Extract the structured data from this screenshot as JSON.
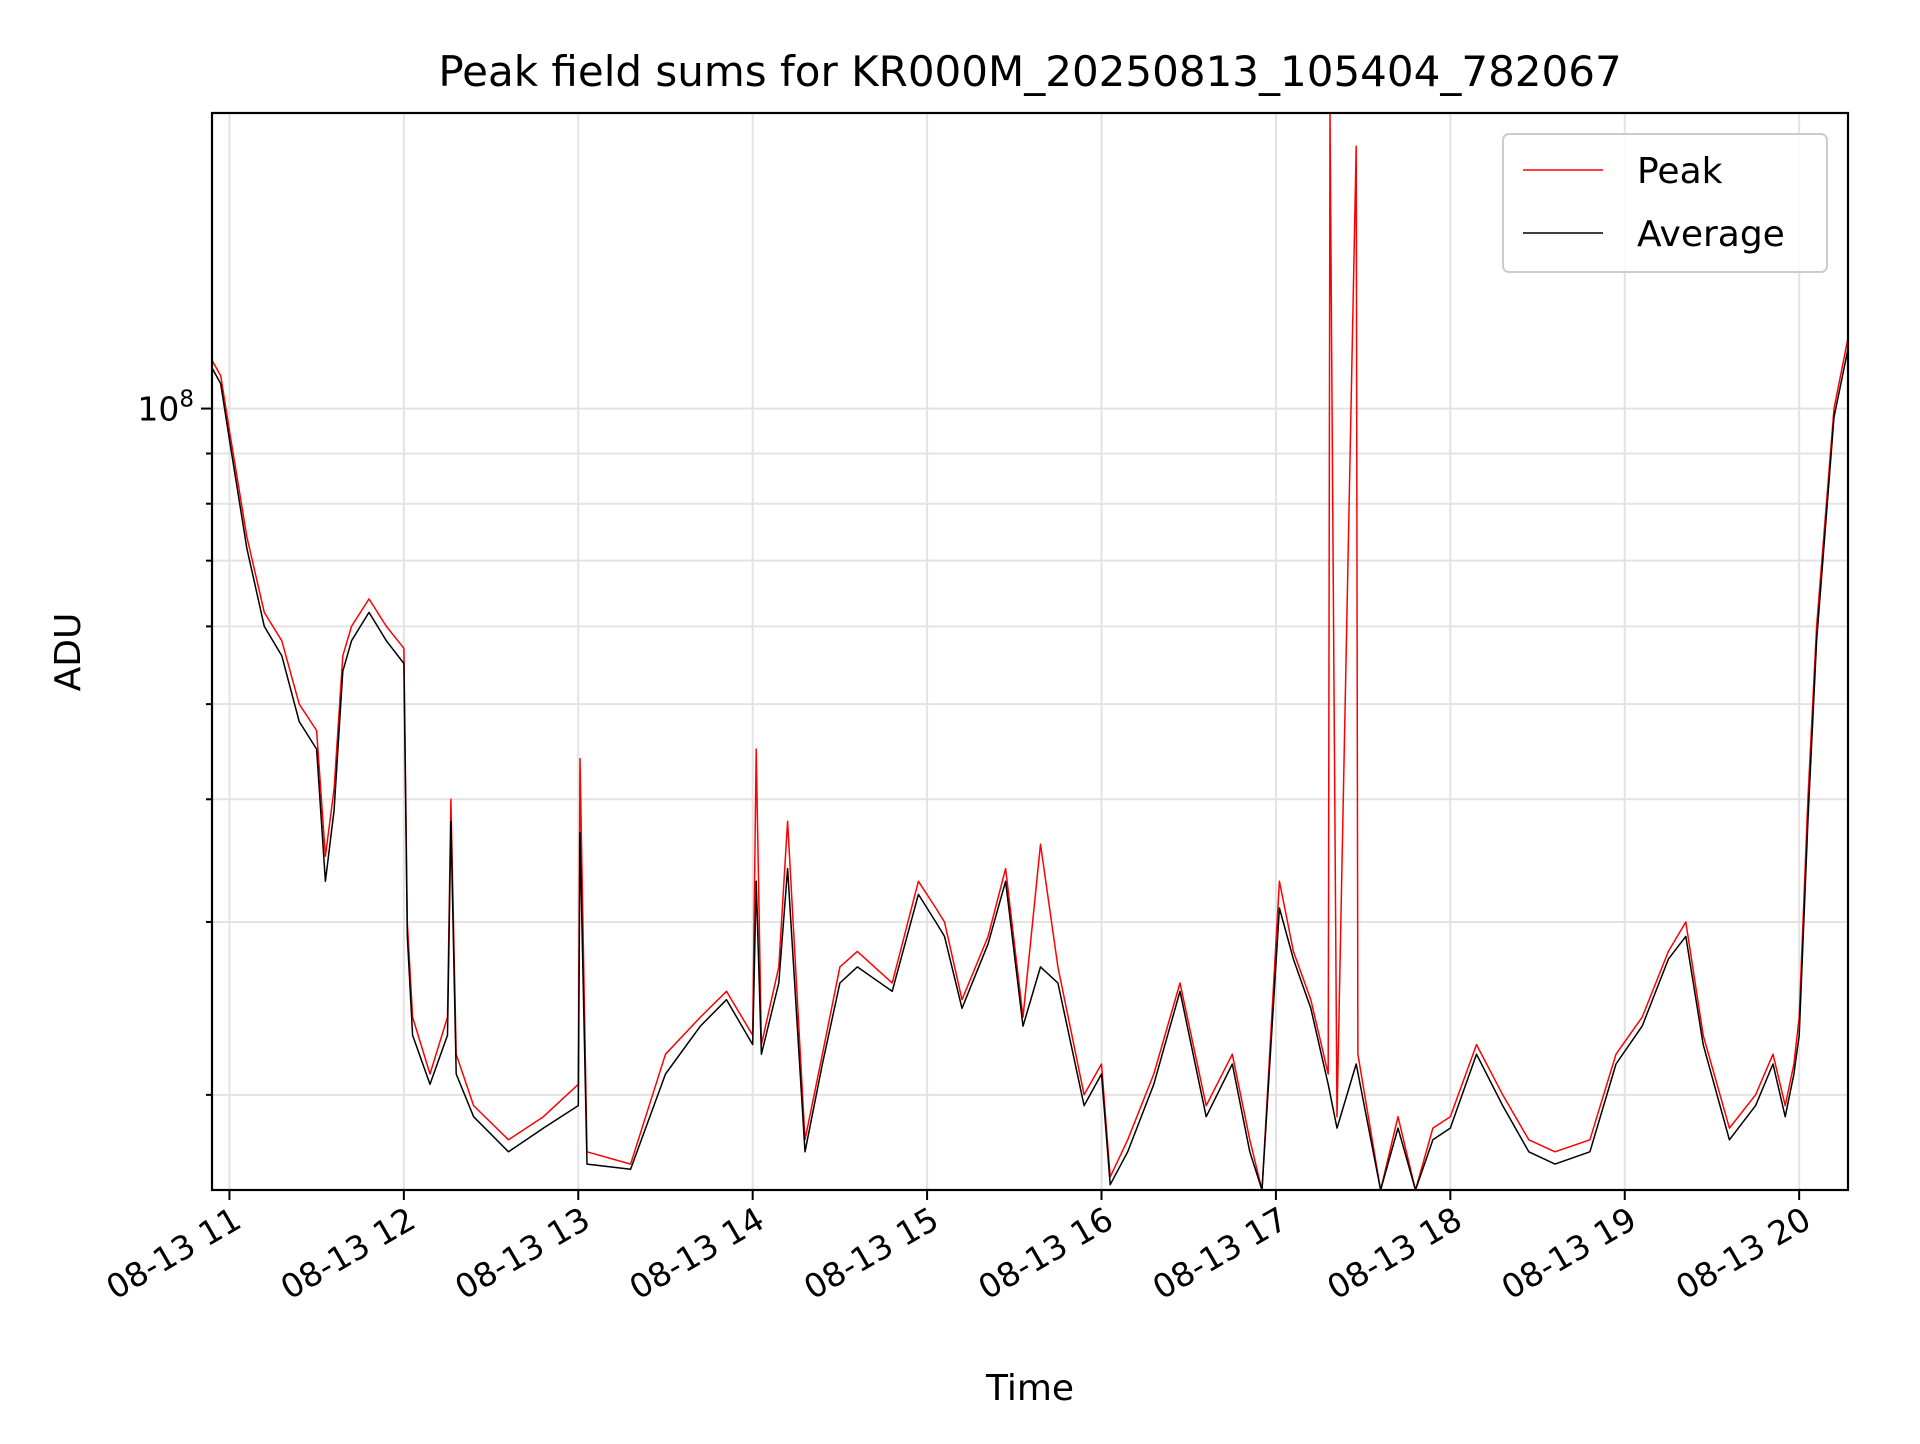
{
  "chart_data": {
    "type": "line",
    "title": "Peak field sums for KR000M_20250813_105404_782067",
    "xlabel": "Time",
    "ylabel": "ADU",
    "y_scale": "log",
    "ylim": [
      16000000.0,
      200000000.0
    ],
    "xlim_hours": [
      10.9,
      20.28
    ],
    "x_ticks": [
      {
        "hour": 11,
        "label": "08-13 11"
      },
      {
        "hour": 12,
        "label": "08-13 12"
      },
      {
        "hour": 13,
        "label": "08-13 13"
      },
      {
        "hour": 14,
        "label": "08-13 14"
      },
      {
        "hour": 15,
        "label": "08-13 15"
      },
      {
        "hour": 16,
        "label": "08-13 16"
      },
      {
        "hour": 17,
        "label": "08-13 17"
      },
      {
        "hour": 18,
        "label": "08-13 18"
      },
      {
        "hour": 19,
        "label": "08-13 19"
      },
      {
        "hour": 20,
        "label": "08-13 20"
      }
    ],
    "y_major_ticks": [
      {
        "value": 100000000,
        "label_base": "10",
        "label_exp": "8"
      }
    ],
    "y_minor_ticks": [
      20000000,
      30000000,
      40000000,
      50000000,
      60000000,
      70000000,
      80000000,
      90000000
    ],
    "grid": true,
    "legend_position": "top-right",
    "series": [
      {
        "name": "Peak",
        "color": "#ff0000",
        "x": [
          10.9,
          10.95,
          11.0,
          11.1,
          11.2,
          11.3,
          11.4,
          11.5,
          11.55,
          11.6,
          11.65,
          11.7,
          11.8,
          11.9,
          12.0,
          12.02,
          12.05,
          12.15,
          12.25,
          12.27,
          12.3,
          12.4,
          12.6,
          12.8,
          13.0,
          13.01,
          13.05,
          13.3,
          13.5,
          13.7,
          13.85,
          14.0,
          14.02,
          14.05,
          14.15,
          14.2,
          14.3,
          14.4,
          14.5,
          14.6,
          14.8,
          14.95,
          15.05,
          15.1,
          15.2,
          15.35,
          15.45,
          15.55,
          15.65,
          15.75,
          15.9,
          16.0,
          16.05,
          16.15,
          16.3,
          16.45,
          16.6,
          16.75,
          16.85,
          16.92,
          17.02,
          17.1,
          17.2,
          17.3,
          17.31,
          17.35,
          17.46,
          17.47,
          17.6,
          17.7,
          17.8,
          17.9,
          18.0,
          18.15,
          18.3,
          18.45,
          18.6,
          18.8,
          18.95,
          19.1,
          19.25,
          19.35,
          19.45,
          19.6,
          19.75,
          19.85,
          19.92,
          19.97,
          20.0,
          20.05,
          20.1,
          20.2,
          20.28
        ],
        "y": [
          112000000,
          108000000,
          95000000,
          74000000,
          62000000,
          58000000,
          50000000,
          47000000,
          35000000,
          41000000,
          56000000,
          60000000,
          64000000,
          60000000,
          57000000,
          30000000,
          24000000,
          21000000,
          24000000,
          40000000,
          22000000,
          19500000,
          18000000,
          19000000,
          20500000,
          44000000,
          17500000,
          17000000,
          22000000,
          24000000,
          25500000,
          23000000,
          45000000,
          22500000,
          27000000,
          38000000,
          18000000,
          22000000,
          27000000,
          28000000,
          26000000,
          33000000,
          31000000,
          30000000,
          25000000,
          29000000,
          34000000,
          24000000,
          36000000,
          27000000,
          20000000,
          21500000,
          16500000,
          18000000,
          21000000,
          26000000,
          19500000,
          22000000,
          18000000,
          16000000,
          33000000,
          28000000,
          25000000,
          21000000,
          200000000,
          19000000,
          185000000,
          22000000,
          15500000,
          19000000,
          15800000,
          18500000,
          19000000,
          22500000,
          20000000,
          18000000,
          17500000,
          18000000,
          22000000,
          24000000,
          28000000,
          30000000,
          23000000,
          18500000,
          20000000,
          22000000,
          19500000,
          21500000,
          24000000,
          40000000,
          60000000,
          100000000,
          118000000
        ]
      },
      {
        "name": "Average",
        "color": "#000000",
        "x": [
          10.9,
          10.95,
          11.0,
          11.1,
          11.2,
          11.3,
          11.4,
          11.5,
          11.55,
          11.6,
          11.65,
          11.7,
          11.8,
          11.9,
          12.0,
          12.02,
          12.05,
          12.15,
          12.25,
          12.27,
          12.3,
          12.4,
          12.6,
          12.8,
          13.0,
          13.01,
          13.05,
          13.3,
          13.5,
          13.7,
          13.85,
          14.0,
          14.02,
          14.05,
          14.15,
          14.2,
          14.3,
          14.4,
          14.5,
          14.6,
          14.8,
          14.95,
          15.05,
          15.1,
          15.2,
          15.35,
          15.45,
          15.55,
          15.65,
          15.75,
          15.9,
          16.0,
          16.05,
          16.15,
          16.3,
          16.45,
          16.6,
          16.75,
          16.85,
          16.92,
          17.02,
          17.1,
          17.2,
          17.3,
          17.35,
          17.46,
          17.6,
          17.7,
          17.8,
          17.9,
          18.0,
          18.15,
          18.3,
          18.45,
          18.6,
          18.8,
          18.95,
          19.1,
          19.25,
          19.35,
          19.45,
          19.6,
          19.75,
          19.85,
          19.92,
          19.97,
          20.0,
          20.05,
          20.1,
          20.2,
          20.28
        ],
        "y": [
          110000000,
          106000000,
          93000000,
          72000000,
          60000000,
          56000000,
          48000000,
          45000000,
          33000000,
          39000000,
          54000000,
          58000000,
          62000000,
          58000000,
          55000000,
          29000000,
          23000000,
          20500000,
          23000000,
          38000000,
          21000000,
          19000000,
          17500000,
          18500000,
          19500000,
          37000000,
          17000000,
          16800000,
          21000000,
          23500000,
          25000000,
          22500000,
          33000000,
          22000000,
          26000000,
          34000000,
          17500000,
          21500000,
          26000000,
          27000000,
          25500000,
          32000000,
          30000000,
          29000000,
          24500000,
          28500000,
          33000000,
          23500000,
          27000000,
          26000000,
          19500000,
          21000000,
          16200000,
          17500000,
          20500000,
          25500000,
          19000000,
          21500000,
          17500000,
          15800000,
          31000000,
          27500000,
          24500000,
          20500000,
          18500000,
          21500000,
          15300000,
          18500000,
          15600000,
          18000000,
          18500000,
          22000000,
          19500000,
          17500000,
          17000000,
          17500000,
          21500000,
          23500000,
          27500000,
          29000000,
          22500000,
          18000000,
          19500000,
          21500000,
          19000000,
          21000000,
          23000000,
          38000000,
          58000000,
          98000000,
          115000000
        ]
      }
    ]
  }
}
